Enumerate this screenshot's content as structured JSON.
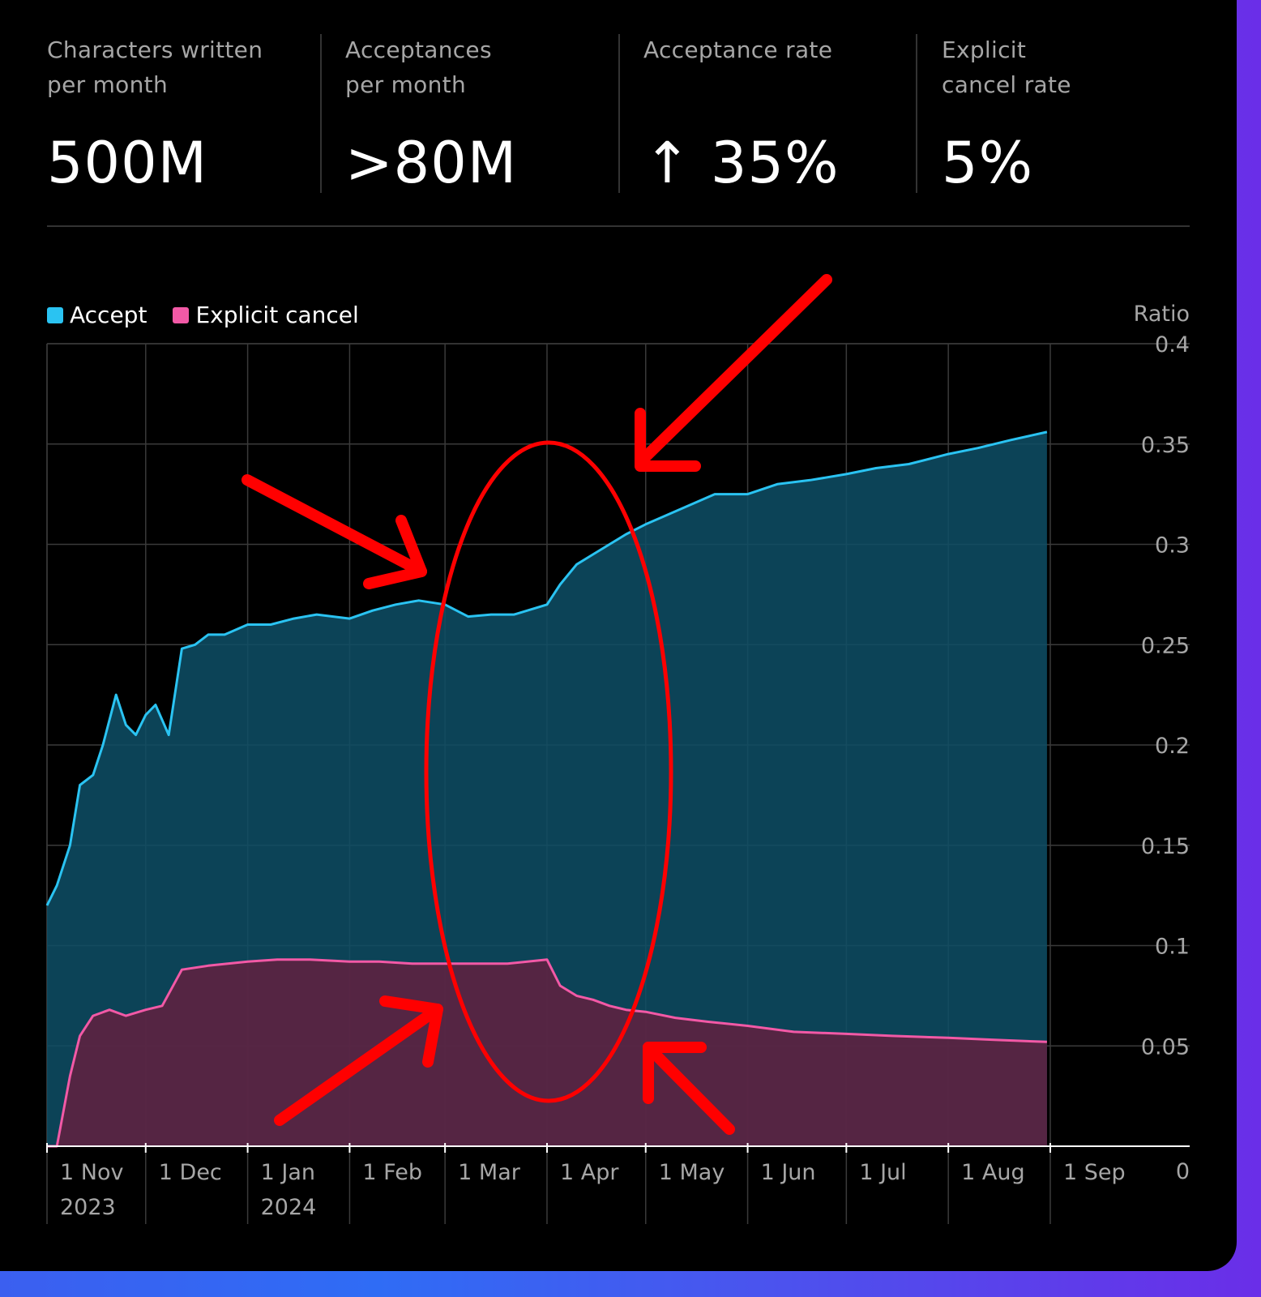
{
  "stats": [
    {
      "label": "Characters written\nper month",
      "value": "500M"
    },
    {
      "label": "Acceptances\nper month",
      "value": ">80M"
    },
    {
      "label": "Acceptance rate",
      "value": "↑ 35%"
    },
    {
      "label": "Explicit\ncancel rate",
      "value": "5%"
    }
  ],
  "colors": {
    "accept": "#2ac3f2",
    "accept_fill": "#0e4f66",
    "cancel": "#f259a6",
    "cancel_fill": "#632040",
    "grid": "#3a3a3a",
    "annotation": "#ff0000"
  },
  "chart_data": {
    "type": "area",
    "legend": [
      "Accept",
      "Explicit cancel"
    ],
    "legend_position": "top-left",
    "ylabel": "Ratio",
    "ylim": [
      0,
      0.4
    ],
    "y_ticks": [
      "0",
      "0.05",
      "0.1",
      "0.15",
      "0.2",
      "0.25",
      "0.3",
      "0.35",
      "0.4"
    ],
    "x_ticks": [
      {
        "label": "1 Nov",
        "sub": "2023",
        "date": "2023-11-01"
      },
      {
        "label": "1 Dec",
        "sub": "",
        "date": "2023-12-01"
      },
      {
        "label": "1 Jan",
        "sub": "2024",
        "date": "2024-01-01"
      },
      {
        "label": "1 Feb",
        "sub": "",
        "date": "2024-02-01"
      },
      {
        "label": "1 Mar",
        "sub": "",
        "date": "2024-03-01"
      },
      {
        "label": "1 Apr",
        "sub": "",
        "date": "2024-04-01"
      },
      {
        "label": "1 May",
        "sub": "",
        "date": "2024-05-01"
      },
      {
        "label": "1 Jun",
        "sub": "",
        "date": "2024-06-01"
      },
      {
        "label": "1 Jul",
        "sub": "",
        "date": "2024-07-01"
      },
      {
        "label": "1 Aug",
        "sub": "",
        "date": "2024-08-01"
      },
      {
        "label": "1 Sep",
        "sub": "",
        "date": "2024-09-01"
      }
    ],
    "grid": true,
    "series": [
      {
        "name": "Accept",
        "x": [
          "2023-11-01",
          "2023-11-04",
          "2023-11-08",
          "2023-11-11",
          "2023-11-15",
          "2023-11-18",
          "2023-11-22",
          "2023-11-25",
          "2023-11-28",
          "2023-12-01",
          "2023-12-04",
          "2023-12-08",
          "2023-12-12",
          "2023-12-16",
          "2023-12-20",
          "2023-12-25",
          "2024-01-01",
          "2024-01-08",
          "2024-01-15",
          "2024-01-22",
          "2024-02-01",
          "2024-02-08",
          "2024-02-15",
          "2024-02-22",
          "2024-03-01",
          "2024-03-08",
          "2024-03-15",
          "2024-03-22",
          "2024-04-01",
          "2024-04-05",
          "2024-04-10",
          "2024-04-15",
          "2024-04-20",
          "2024-04-25",
          "2024-05-01",
          "2024-05-08",
          "2024-05-15",
          "2024-05-22",
          "2024-06-01",
          "2024-06-10",
          "2024-06-20",
          "2024-07-01",
          "2024-07-10",
          "2024-07-20",
          "2024-08-01",
          "2024-08-10",
          "2024-08-20",
          "2024-08-31"
        ],
        "values": [
          0.12,
          0.13,
          0.15,
          0.18,
          0.185,
          0.2,
          0.225,
          0.21,
          0.205,
          0.215,
          0.22,
          0.205,
          0.248,
          0.25,
          0.255,
          0.255,
          0.26,
          0.26,
          0.263,
          0.265,
          0.263,
          0.267,
          0.27,
          0.272,
          0.27,
          0.264,
          0.265,
          0.265,
          0.27,
          0.28,
          0.29,
          0.295,
          0.3,
          0.305,
          0.31,
          0.315,
          0.32,
          0.325,
          0.325,
          0.33,
          0.332,
          0.335,
          0.338,
          0.34,
          0.345,
          0.348,
          0.352,
          0.356
        ]
      },
      {
        "name": "Explicit cancel",
        "x": [
          "2023-11-01",
          "2023-11-04",
          "2023-11-08",
          "2023-11-11",
          "2023-11-15",
          "2023-11-20",
          "2023-11-25",
          "2023-12-01",
          "2023-12-06",
          "2023-12-12",
          "2023-12-20",
          "2024-01-01",
          "2024-01-10",
          "2024-01-20",
          "2024-02-01",
          "2024-02-10",
          "2024-02-20",
          "2024-03-01",
          "2024-03-10",
          "2024-03-20",
          "2024-04-01",
          "2024-04-05",
          "2024-04-10",
          "2024-04-15",
          "2024-04-20",
          "2024-04-25",
          "2024-05-01",
          "2024-05-10",
          "2024-05-20",
          "2024-06-01",
          "2024-06-15",
          "2024-07-01",
          "2024-07-15",
          "2024-08-01",
          "2024-08-15",
          "2024-08-31"
        ],
        "values": [
          0,
          0,
          0.035,
          0.055,
          0.065,
          0.068,
          0.065,
          0.068,
          0.07,
          0.088,
          0.09,
          0.092,
          0.093,
          0.093,
          0.092,
          0.092,
          0.091,
          0.091,
          0.091,
          0.091,
          0.093,
          0.08,
          0.075,
          0.073,
          0.07,
          0.068,
          0.067,
          0.064,
          0.062,
          0.06,
          0.057,
          0.056,
          0.055,
          0.054,
          0.053,
          0.052
        ]
      }
    ]
  }
}
